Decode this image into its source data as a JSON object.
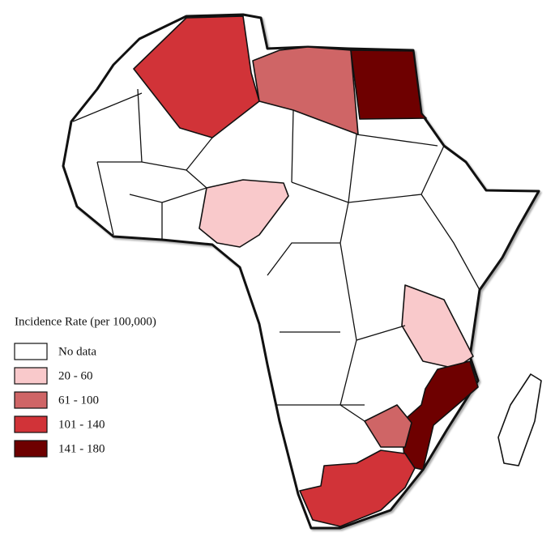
{
  "legend": {
    "title": "Incidence Rate (per 100,000)",
    "items": [
      {
        "label": "No data",
        "color": "#ffffff"
      },
      {
        "label": "20 - 60",
        "color": "#f9c9cb"
      },
      {
        "label": "61 - 100",
        "color": "#cf6566"
      },
      {
        "label": "101 - 140",
        "color": "#d13338"
      },
      {
        "label": "141 - 180",
        "color": "#6e0000"
      }
    ]
  }
}
